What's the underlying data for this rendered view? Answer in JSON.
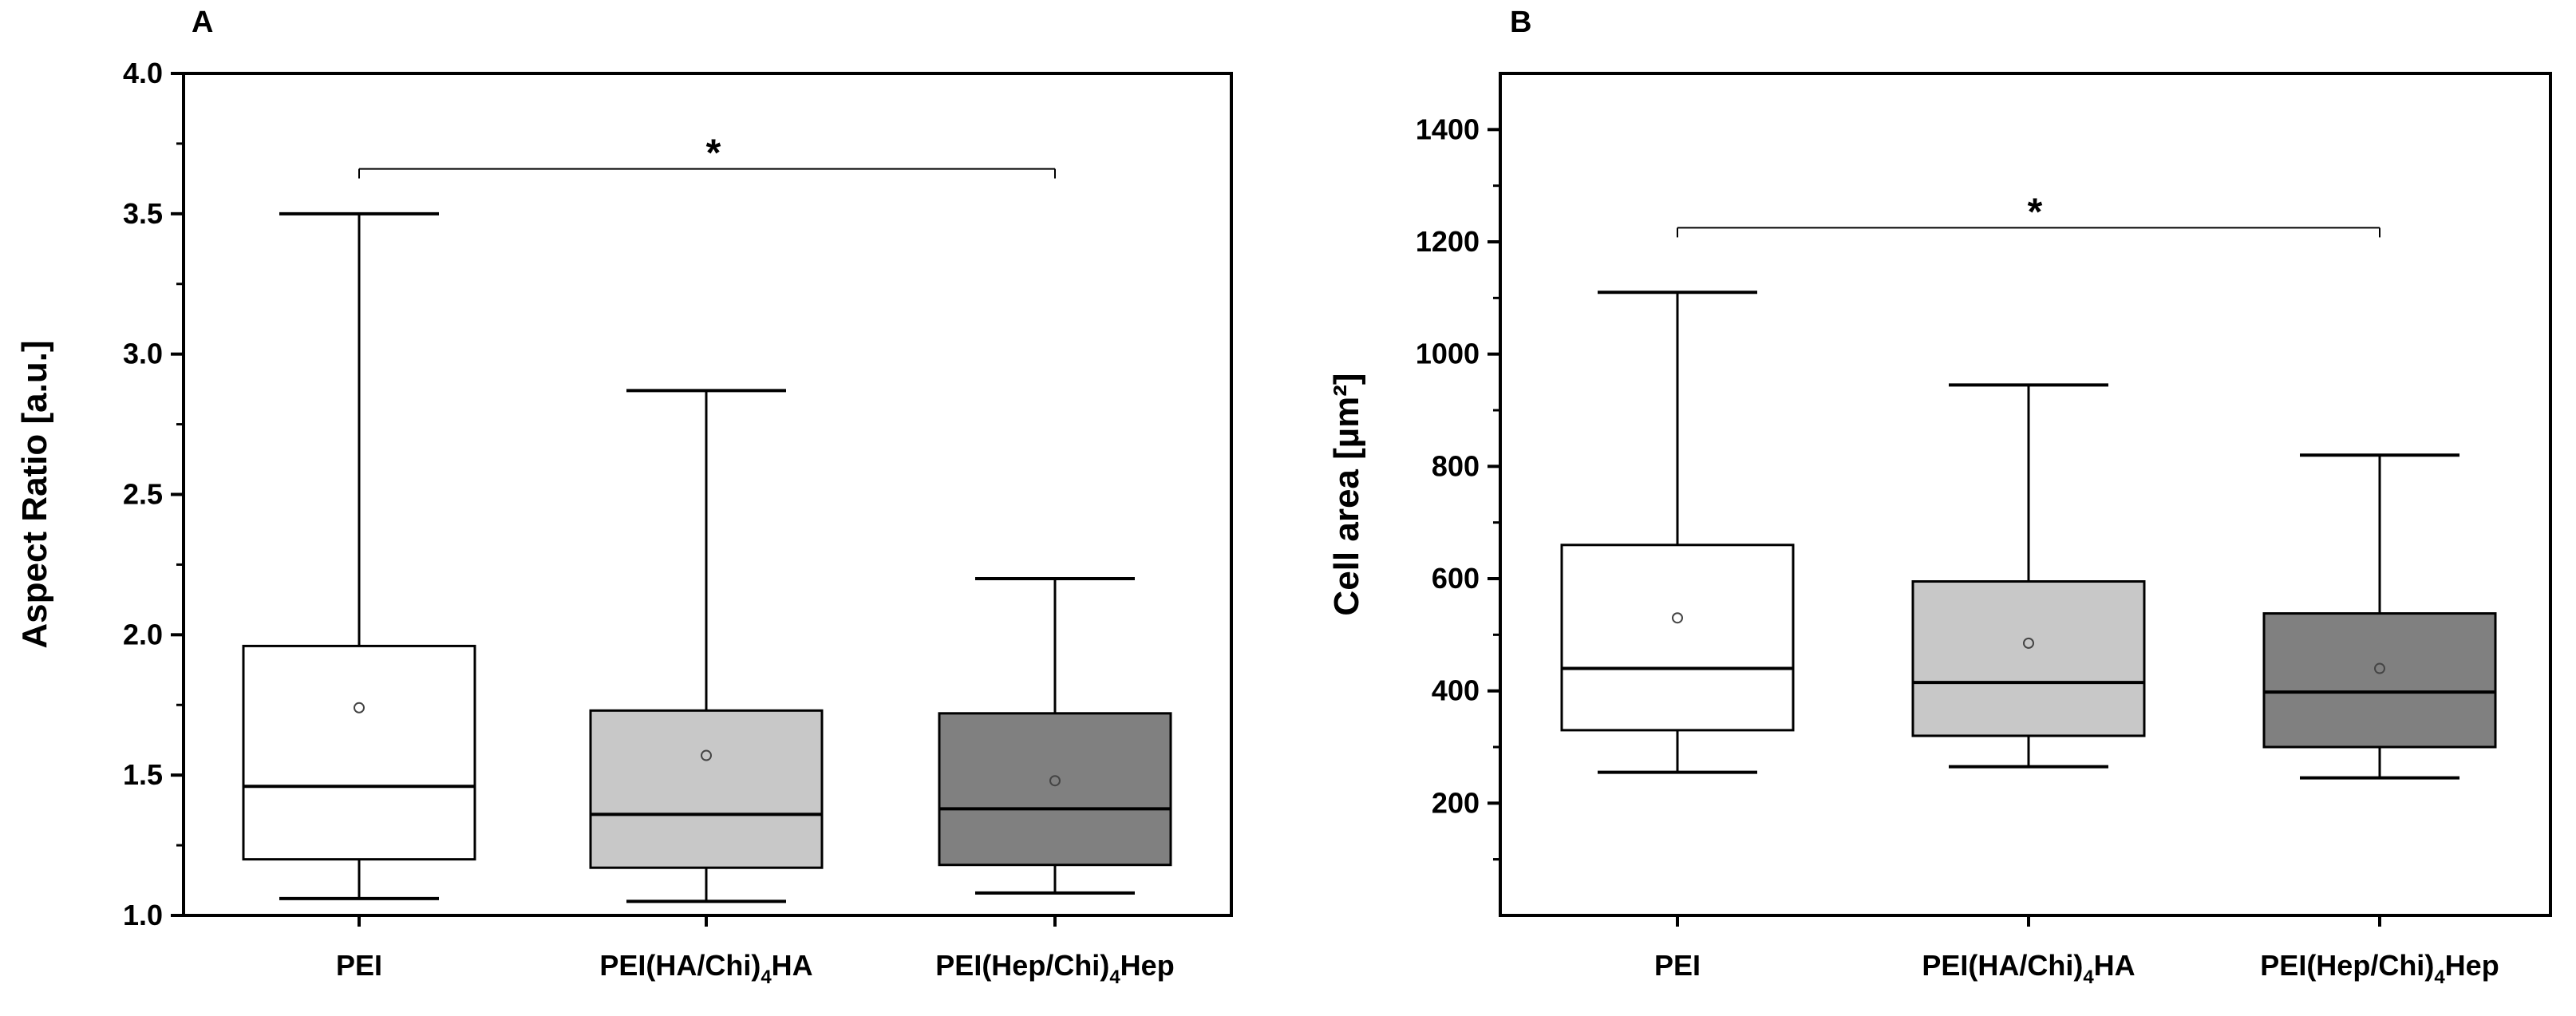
{
  "chart_data": [
    {
      "panel": "A",
      "type": "box",
      "xlabel": "",
      "ylabel": "Aspect Ratio [a.u.]",
      "ylim": [
        1.0,
        4.0
      ],
      "yticks": [
        "1.0",
        "1.5",
        "2.0",
        "2.5",
        "3.0",
        "3.5",
        "4.0"
      ],
      "categories": [
        {
          "main": "PEI(",
          "sub": "",
          "tail": ""
        },
        {
          "main": "PEI(HA/Chi)",
          "sub": "4",
          "tail": "HA"
        },
        {
          "main": "PEI(Hep/Chi)",
          "sub": "4",
          "tail": "Hep"
        }
      ],
      "category_names": [
        "PEI",
        "PEI(HA/Chi)4HA",
        "PEI(Hep/Chi)4Hep"
      ],
      "boxes": [
        {
          "min": 1.06,
          "q1": 1.2,
          "median": 1.46,
          "q3": 1.96,
          "max": 3.5,
          "mean": 1.74,
          "fill": "#ffffff"
        },
        {
          "min": 1.05,
          "q1": 1.17,
          "median": 1.36,
          "q3": 1.73,
          "max": 2.87,
          "mean": 1.57,
          "fill": "#c8c8c8"
        },
        {
          "min": 1.08,
          "q1": 1.18,
          "median": 1.38,
          "q3": 1.72,
          "max": 2.2,
          "mean": 1.48,
          "fill": "#808080"
        }
      ],
      "significance": {
        "from": 0,
        "to": 2,
        "y": 3.66,
        "label": "*"
      }
    },
    {
      "panel": "B",
      "type": "box",
      "xlabel": "",
      "ylabel": "Cell area [µm²]",
      "ylim": [
        0,
        1500
      ],
      "yticks": [
        "200",
        "400",
        "600",
        "800",
        "1000",
        "1200",
        "1400"
      ],
      "categories": [
        {
          "main": "PEI(",
          "sub": "",
          "tail": ""
        },
        {
          "main": "PEI(HA/Chi)",
          "sub": "4",
          "tail": "HA"
        },
        {
          "main": "PEI(Hep/Chi)",
          "sub": "4",
          "tail": "Hep"
        }
      ],
      "category_names": [
        "PEI",
        "PEI(HA/Chi)4HA",
        "PEI(Hep/Chi)4Hep"
      ],
      "boxes": [
        {
          "min": 255,
          "q1": 330,
          "median": 440,
          "q3": 660,
          "max": 1110,
          "mean": 530,
          "fill": "#ffffff"
        },
        {
          "min": 265,
          "q1": 320,
          "median": 415,
          "q3": 595,
          "max": 945,
          "mean": 485,
          "fill": "#c8c8c8"
        },
        {
          "min": 245,
          "q1": 300,
          "median": 398,
          "q3": 538,
          "max": 820,
          "mean": 440,
          "fill": "#808080"
        }
      ],
      "significance": {
        "from": 0,
        "to": 2,
        "y": 1225,
        "label": "*"
      }
    }
  ]
}
